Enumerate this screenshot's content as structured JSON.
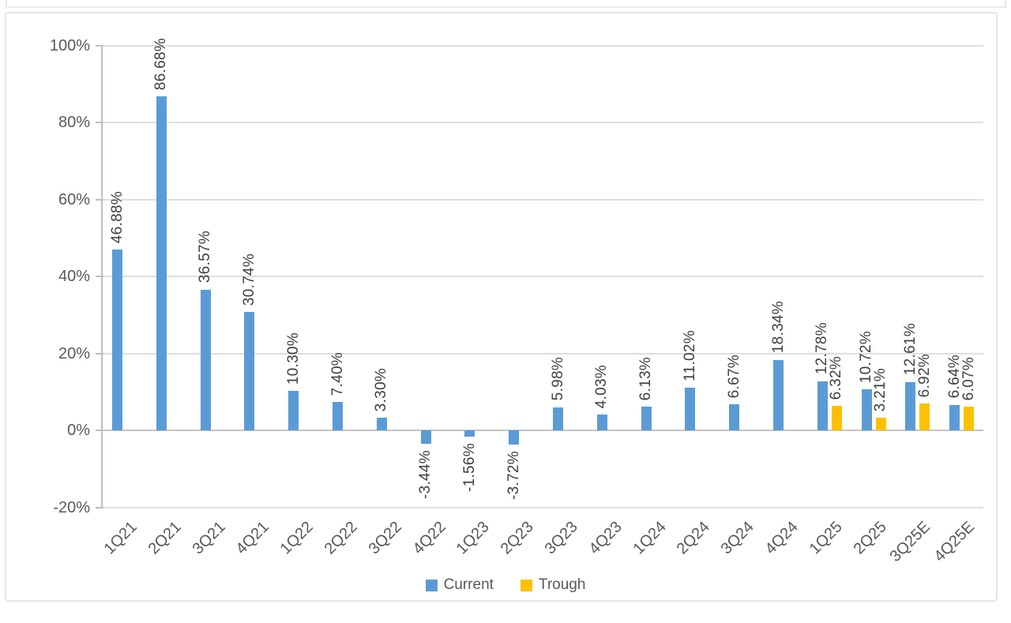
{
  "chart_data": {
    "type": "bar",
    "title": "",
    "categories": [
      "1Q21",
      "2Q21",
      "3Q21",
      "4Q21",
      "1Q22",
      "2Q22",
      "3Q22",
      "4Q22",
      "1Q23",
      "2Q23",
      "3Q23",
      "4Q23",
      "1Q24",
      "2Q24",
      "3Q24",
      "4Q24",
      "1Q25",
      "2Q25",
      "3Q25E",
      "4Q25E"
    ],
    "series": [
      {
        "name": "Current",
        "color": "#5B9BD5",
        "values": [
          46.88,
          86.68,
          36.57,
          30.74,
          10.3,
          7.4,
          3.3,
          -3.44,
          -1.56,
          -3.72,
          5.98,
          4.03,
          6.13,
          11.02,
          6.67,
          18.34,
          12.78,
          10.72,
          12.61,
          6.64
        ],
        "labels": [
          "46.88%",
          "86.68%",
          "36.57%",
          "30.74%",
          "10.30%",
          "7.40%",
          "3.30%",
          "-3.44%",
          "-1.56%",
          "-3.72%",
          "5.98%",
          "4.03%",
          "6.13%",
          "11.02%",
          "6.67%",
          "18.34%",
          "12.78%",
          "10.72%",
          "12.61%",
          "6.64%"
        ]
      },
      {
        "name": "Trough",
        "color": "#FFC000",
        "values": [
          null,
          null,
          null,
          null,
          null,
          null,
          null,
          null,
          null,
          null,
          null,
          null,
          null,
          null,
          null,
          null,
          6.32,
          3.21,
          6.92,
          6.07
        ],
        "labels": [
          null,
          null,
          null,
          null,
          null,
          null,
          null,
          null,
          null,
          null,
          null,
          null,
          null,
          null,
          null,
          null,
          "6.32%",
          "3.21%",
          "6.92%",
          "6.07%"
        ]
      }
    ],
    "y_axis": {
      "ticks": [
        "100%",
        "80%",
        "60%",
        "40%",
        "20%",
        "0%",
        "-20%"
      ],
      "tick_values": [
        100,
        80,
        60,
        40,
        20,
        0,
        -20
      ],
      "min": -20,
      "max": 100,
      "step": 20
    },
    "grid": true,
    "legend": {
      "position": "bottom",
      "items": [
        {
          "label": "Current",
          "color": "#5B9BD5"
        },
        {
          "label": "Trough",
          "color": "#FFC000"
        }
      ]
    },
    "colors": {
      "current_bar": "#5B9BD5",
      "trough_bar": "#FFC000",
      "gridline": "#dedede",
      "zero_line": "#c4c4c4",
      "axis_line": "#bfbfbf",
      "tick_text": "#595959",
      "value_text": "#3f3f3f"
    }
  }
}
